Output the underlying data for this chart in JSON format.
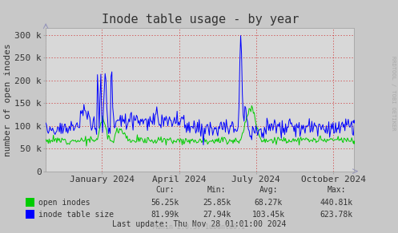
{
  "title": "Inode table usage - by year",
  "ylabel": "number of open inodes",
  "bg_color": "#c8c8c8",
  "plot_bg_color": "#d8d8d8",
  "line_color_green": "#00cc00",
  "line_color_blue": "#0000ff",
  "legend_green": "open inodes",
  "legend_blue": "inode table size",
  "cur_green": "56.25k",
  "min_green": "25.85k",
  "avg_green": "68.27k",
  "max_green": "440.81k",
  "cur_blue": "81.99k",
  "min_blue": "27.94k",
  "avg_blue": "103.45k",
  "max_blue": "623.78k",
  "last_update": "Last update: Thu Nov 28 01:01:00 2024",
  "munin_version": "Munin 2.0.37-1ubuntu0.1",
  "rrdtool_label": "RRDTOOL / TOBI OETIKER",
  "ytick_vals": [
    0,
    50000,
    100000,
    150000,
    200000,
    250000,
    300000
  ],
  "ytick_labels": [
    "0",
    "50 k",
    "100 k",
    "150 k",
    "200 k",
    "250 k",
    "300 k"
  ],
  "ylim": [
    0,
    315000
  ],
  "xtick_positions": [
    0.182,
    0.432,
    0.682,
    0.932
  ],
  "xtick_labels": [
    "January 2024",
    "April 2024",
    "July 2024",
    "October 2024"
  ],
  "vline_positions": [
    0.0,
    0.182,
    0.432,
    0.682,
    0.932
  ],
  "hline_positions": [
    50000,
    100000,
    150000,
    200000,
    250000,
    300000
  ],
  "title_fontsize": 11,
  "axis_label_fontsize": 8,
  "tick_fontsize": 8,
  "stats_fontsize": 8
}
